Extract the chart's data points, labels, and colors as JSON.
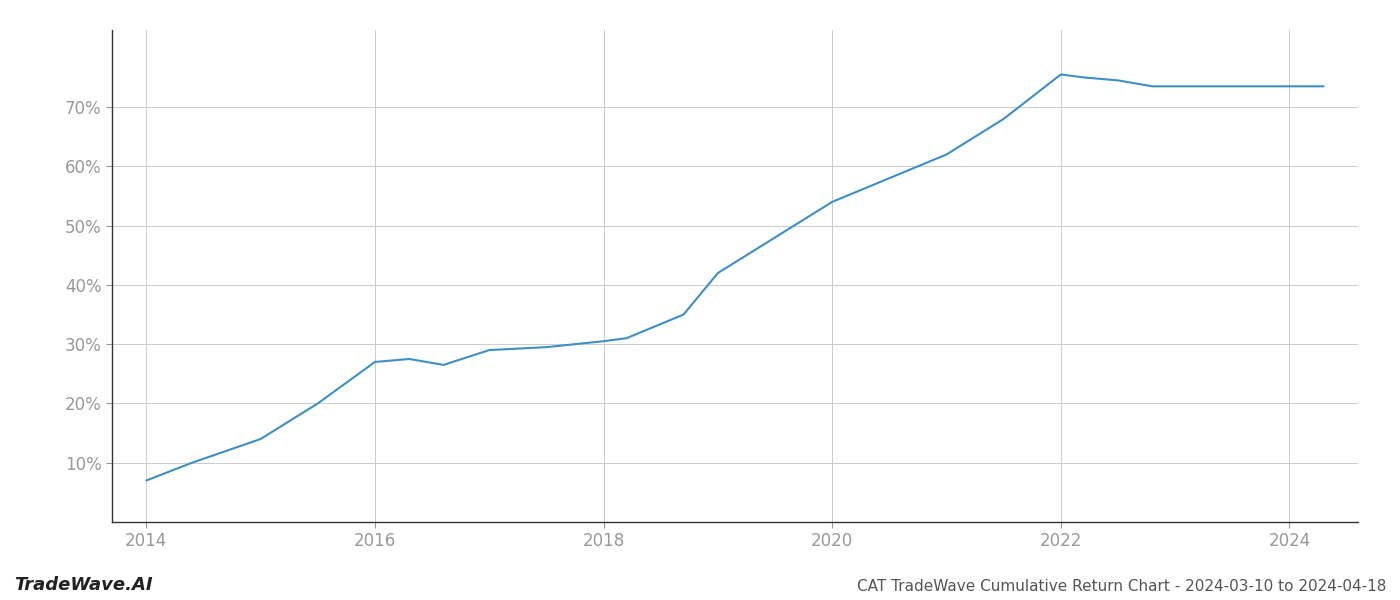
{
  "x": [
    2014.0,
    2014.4,
    2015.0,
    2015.5,
    2016.0,
    2016.3,
    2016.6,
    2017.0,
    2017.5,
    2018.0,
    2018.2,
    2018.7,
    2019.0,
    2019.5,
    2020.0,
    2020.5,
    2021.0,
    2021.5,
    2022.0,
    2022.2,
    2022.5,
    2022.8,
    2023.0,
    2023.5,
    2024.0,
    2024.3
  ],
  "y": [
    7.0,
    10.0,
    14.0,
    20.0,
    27.0,
    27.5,
    26.5,
    29.0,
    29.5,
    30.5,
    31.0,
    35.0,
    42.0,
    48.0,
    54.0,
    58.0,
    62.0,
    68.0,
    75.5,
    75.0,
    74.5,
    73.5,
    73.5,
    73.5,
    73.5,
    73.5
  ],
  "line_color": "#3d8fc4",
  "line_width": 1.5,
  "title": "CAT TradeWave Cumulative Return Chart - 2024-03-10 to 2024-04-18",
  "xlim": [
    2013.7,
    2024.6
  ],
  "ylim": [
    0,
    83
  ],
  "yticks": [
    10,
    20,
    30,
    40,
    50,
    60,
    70
  ],
  "xticks": [
    2014,
    2016,
    2018,
    2020,
    2022,
    2024
  ],
  "grid_color": "#cccccc",
  "bg_color": "#ffffff",
  "watermark_text": "TradeWave.AI",
  "title_fontsize": 11,
  "tick_fontsize": 12,
  "watermark_fontsize": 13,
  "tick_color": "#999999",
  "spine_color": "#333333"
}
